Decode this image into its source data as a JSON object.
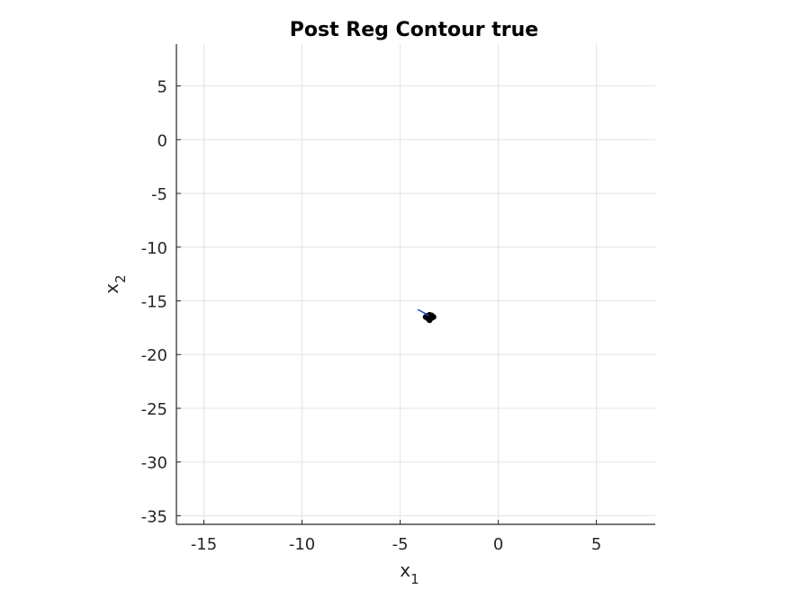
{
  "chart_data": {
    "type": "scatter",
    "title": "Post Reg Contour true",
    "xlabel": {
      "base": "x",
      "sub": "1"
    },
    "ylabel": {
      "base": "x",
      "sub": "2"
    },
    "xlim": [
      -16.4,
      8.0
    ],
    "ylim": [
      -35.8,
      8.9
    ],
    "xticks": [
      -15,
      -10,
      -5,
      0,
      5
    ],
    "yticks": [
      5,
      0,
      -5,
      -10,
      -15,
      -20,
      -25,
      -30,
      -35
    ],
    "grid": true,
    "colors": {
      "points": "#000000",
      "contour": "#1f3fbf",
      "grid": "#e3e3e3",
      "axis": "#262626"
    },
    "series": [
      {
        "kind": "points",
        "color": "#000000",
        "points": [
          [
            -3.5,
            -16.5
          ],
          [
            -3.6,
            -16.4
          ],
          [
            -3.4,
            -16.6
          ],
          [
            -3.5,
            -16.3
          ],
          [
            -3.55,
            -16.7
          ],
          [
            -3.45,
            -16.45
          ],
          [
            -3.7,
            -16.5
          ],
          [
            -3.3,
            -16.5
          ],
          [
            -3.5,
            -16.8
          ],
          [
            -3.6,
            -16.6
          ],
          [
            -3.4,
            -16.35
          ],
          [
            -3.5,
            -16.55
          ]
        ]
      },
      {
        "kind": "contour",
        "color": "#1f3fbf",
        "points": [
          [
            -4.1,
            -15.8
          ],
          [
            -3.9,
            -16.0
          ],
          [
            -3.7,
            -16.2
          ],
          [
            -3.55,
            -16.4
          ]
        ]
      }
    ]
  }
}
